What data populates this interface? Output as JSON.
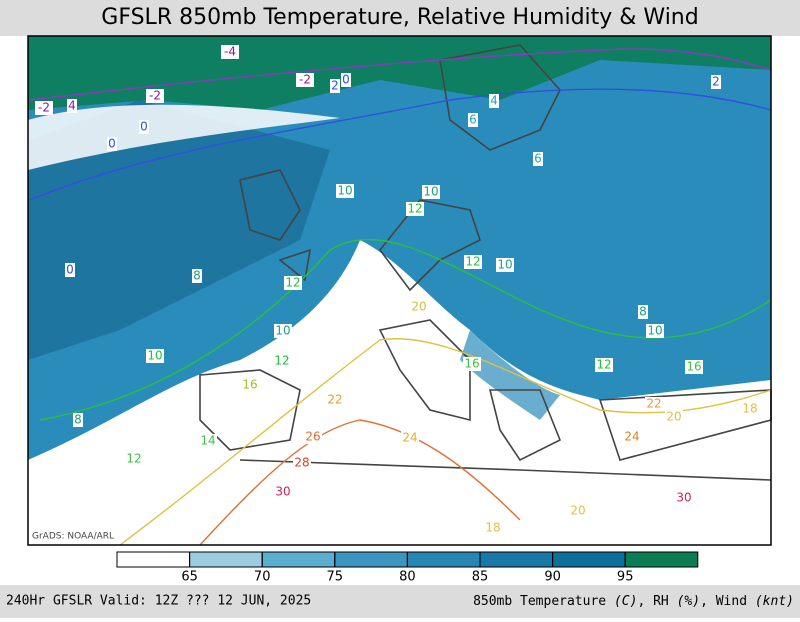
{
  "header": {
    "title": "GFSLR 850mb Temperature, Relative Humidity & Wind"
  },
  "map": {
    "credit": "GrADS: NOAA/ARL",
    "contour_labels": [
      "-4",
      "-2",
      "2",
      "0",
      "-2",
      "4",
      "-2",
      "0",
      "0",
      "2",
      "4",
      "6",
      "10",
      "10",
      "12",
      "10",
      "12",
      "8",
      "0",
      "10",
      "12",
      "10",
      "12",
      "16",
      "20",
      "22",
      "24",
      "26",
      "28",
      "30",
      "18",
      "20",
      "14",
      "16",
      "8",
      "12",
      "6",
      "8",
      "10",
      "12",
      "22",
      "24",
      "20",
      "30",
      "18",
      "16"
    ]
  },
  "colorbar": {
    "ticks": [
      65,
      70,
      75,
      80,
      85,
      90,
      95
    ],
    "colors": [
      "#ffffff",
      "#9ccce0",
      "#5aaed0",
      "#3a96c0",
      "#2585b3",
      "#1a78a8",
      "#0e6f9d",
      "#0b7d52"
    ]
  },
  "footer": {
    "left": "240Hr GFSLR Valid: 12Z ??? 12 JUN, 2025",
    "right": [
      "850mb Temperature ",
      "(C)",
      ", RH ",
      "(%)",
      ", Wind ",
      "(knt)"
    ]
  }
}
